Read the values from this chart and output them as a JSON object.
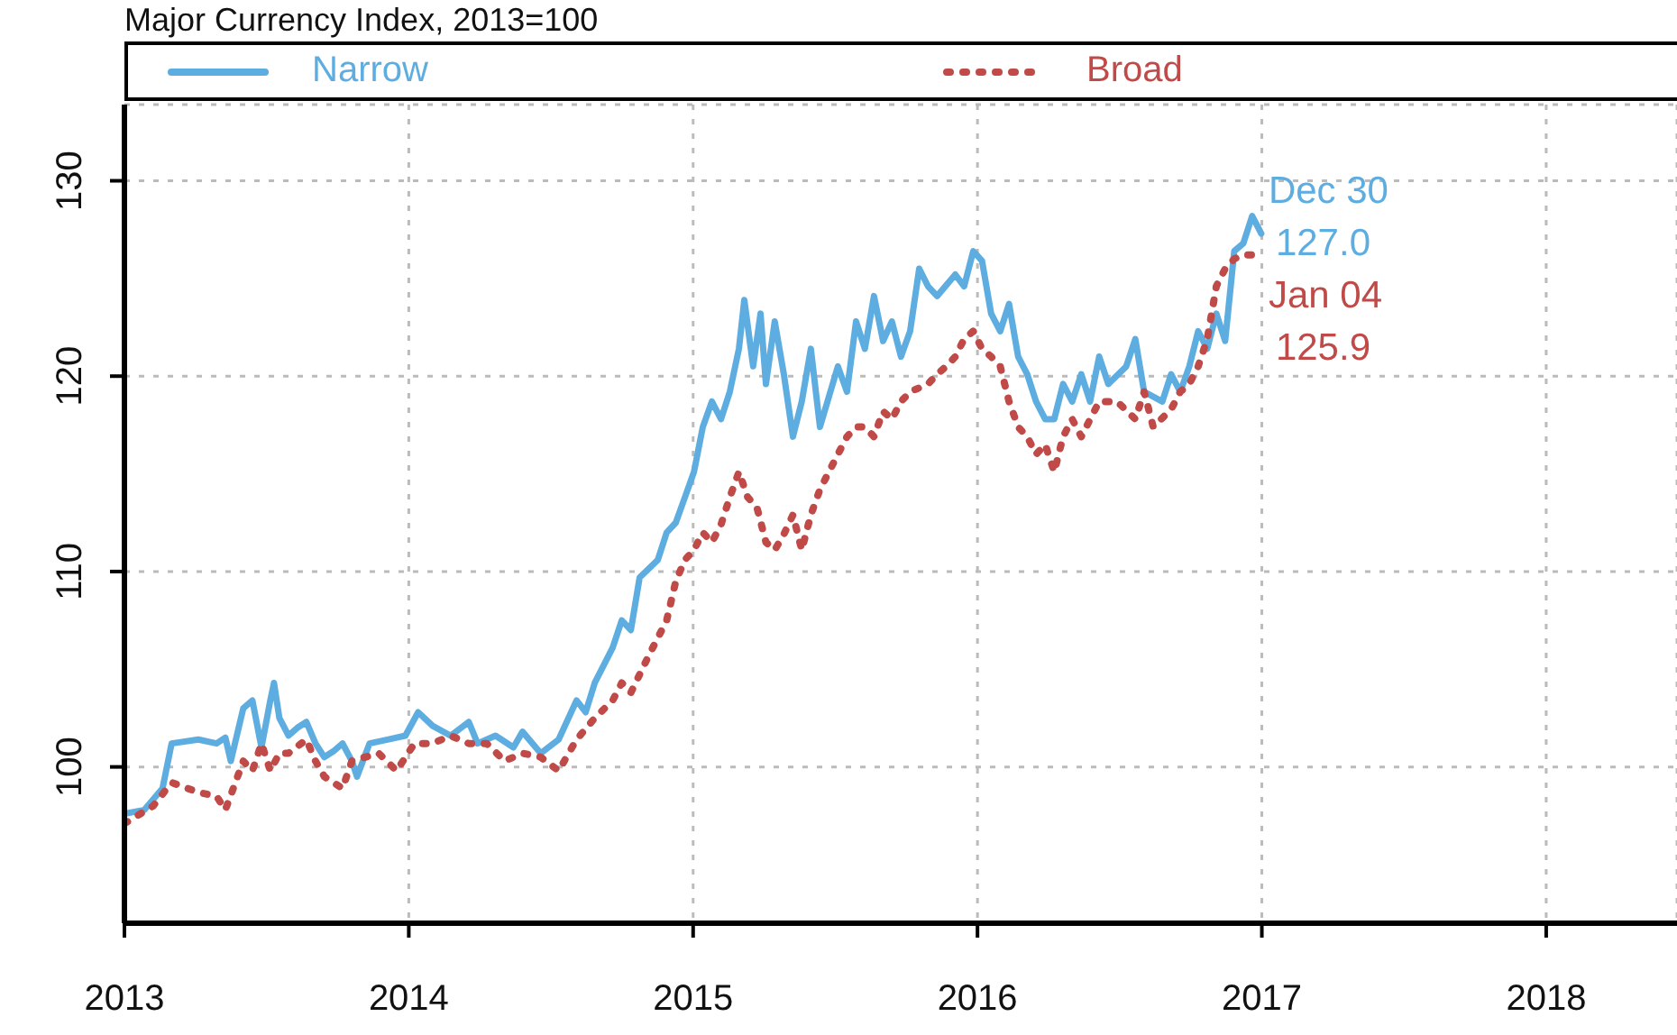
{
  "chart_data": {
    "type": "line",
    "title": "Major Currency Index, 2013=100",
    "series": [
      {
        "name": "Narrow",
        "color": "#5eade0",
        "line_style": "solid",
        "x": [
          2013.0,
          2013.07,
          2013.134,
          2013.166,
          2013.26,
          2013.324,
          2013.355,
          2013.374,
          2013.418,
          2013.45,
          2013.482,
          2013.513,
          2013.526,
          2013.545,
          2013.577,
          2013.608,
          2013.64,
          2013.672,
          2013.703,
          2013.735,
          2013.767,
          2013.8,
          2013.818,
          2013.862,
          2013.925,
          2013.988,
          2014.033,
          2014.084,
          2014.147,
          2014.211,
          2014.242,
          2014.305,
          2014.368,
          2014.4,
          2014.464,
          2014.527,
          2014.59,
          2014.622,
          2014.654,
          2014.717,
          2014.749,
          2014.781,
          2014.812,
          2014.876,
          2014.907,
          2014.939,
          2014.971,
          2015.003,
          2015.034,
          2015.066,
          2015.098,
          2015.129,
          2015.161,
          2015.18,
          2015.211,
          2015.237,
          2015.256,
          2015.287,
          2015.319,
          2015.351,
          2015.382,
          2015.414,
          2015.446,
          2015.509,
          2015.541,
          2015.573,
          2015.604,
          2015.636,
          2015.668,
          2015.699,
          2015.731,
          2015.763,
          2015.795,
          2015.826,
          2015.858,
          2015.922,
          2015.953,
          2015.985,
          2016.016,
          2016.048,
          2016.08,
          2016.111,
          2016.143,
          2016.175,
          2016.206,
          2016.238,
          2016.27,
          2016.301,
          2016.333,
          2016.365,
          2016.396,
          2016.428,
          2016.46,
          2016.523,
          2016.555,
          2016.586,
          2016.65,
          2016.681,
          2016.713,
          2016.745,
          2016.776,
          2016.808,
          2016.84,
          2016.871,
          2016.903,
          2016.935,
          2016.966,
          2016.998
        ],
        "values": [
          97.6,
          97.8,
          98.9,
          101.2,
          101.4,
          101.2,
          101.5,
          100.3,
          103,
          103.4,
          101,
          103.4,
          104.3,
          102.5,
          101.6,
          102,
          102.3,
          101.2,
          100.5,
          100.8,
          101.2,
          100.3,
          99.5,
          101.2,
          101.4,
          101.6,
          102.8,
          102.1,
          101.6,
          102.3,
          101.2,
          101.6,
          101,
          101.8,
          100.7,
          101.4,
          103.4,
          102.8,
          104.3,
          106.1,
          107.5,
          107,
          109.7,
          110.6,
          112,
          112.5,
          113.8,
          115.1,
          117.4,
          118.7,
          117.8,
          119.2,
          121.4,
          123.9,
          120.5,
          123.2,
          119.6,
          122.8,
          120.1,
          116.9,
          118.7,
          121.4,
          117.4,
          120.5,
          119.2,
          122.8,
          121.4,
          124.1,
          121.8,
          122.8,
          121,
          122.3,
          125.5,
          124.6,
          124.1,
          125.2,
          124.6,
          126.4,
          125.9,
          123.2,
          122.3,
          123.7,
          121,
          120.1,
          118.7,
          117.8,
          117.8,
          119.6,
          118.7,
          120.1,
          118.7,
          121,
          119.6,
          120.5,
          121.9,
          119.2,
          118.7,
          120.1,
          119.2,
          120.5,
          122.3,
          121.4,
          123.2,
          121.8,
          126.4,
          126.8,
          128.2,
          127.3
        ]
      },
      {
        "name": "Broad",
        "color": "#bf4a47",
        "line_style": "dotted",
        "x": [
          2013.0,
          2013.101,
          2013.166,
          2013.26,
          2013.324,
          2013.355,
          2013.418,
          2013.45,
          2013.482,
          2013.513,
          2013.545,
          2013.577,
          2013.64,
          2013.672,
          2013.703,
          2013.767,
          2013.8,
          2013.894,
          2013.957,
          2014.02,
          2014.084,
          2014.147,
          2014.211,
          2014.274,
          2014.337,
          2014.4,
          2014.464,
          2014.527,
          2014.59,
          2014.654,
          2014.717,
          2014.749,
          2014.781,
          2014.844,
          2014.907,
          2014.939,
          2014.971,
          2015.003,
          2015.034,
          2015.066,
          2015.098,
          2015.129,
          2015.161,
          2015.192,
          2015.224,
          2015.256,
          2015.287,
          2015.319,
          2015.351,
          2015.382,
          2015.414,
          2015.446,
          2015.509,
          2015.541,
          2015.573,
          2015.604,
          2015.636,
          2015.668,
          2015.699,
          2015.731,
          2015.763,
          2015.826,
          2015.858,
          2015.89,
          2015.922,
          2015.953,
          2015.985,
          2016.016,
          2016.048,
          2016.08,
          2016.111,
          2016.143,
          2016.175,
          2016.206,
          2016.238,
          2016.27,
          2016.301,
          2016.333,
          2016.365,
          2016.428,
          2016.491,
          2016.555,
          2016.586,
          2016.618,
          2016.681,
          2016.713,
          2016.745,
          2016.776,
          2016.808,
          2016.84,
          2016.871,
          2016.903,
          2016.935,
          2016.966,
          2016.998
        ],
        "values": [
          97.1,
          98,
          99.2,
          98.7,
          98.5,
          97.8,
          100.3,
          99.8,
          101.2,
          99.8,
          100.7,
          100.7,
          101.4,
          100.3,
          99.5,
          98.9,
          100.3,
          100.7,
          99.8,
          101.2,
          101.2,
          101.6,
          101.2,
          101.2,
          100.3,
          100.7,
          100.5,
          99.8,
          101.4,
          102.5,
          103.4,
          104.3,
          103.8,
          105.7,
          107.5,
          109.5,
          110.6,
          111.1,
          112,
          111.5,
          112.4,
          113.8,
          115.1,
          113.8,
          113.3,
          111.5,
          111.1,
          111.9,
          112.9,
          111.1,
          112.9,
          114.2,
          116,
          116.9,
          117.4,
          117.4,
          116.9,
          118.2,
          117.8,
          118.7,
          119.2,
          119.6,
          120.1,
          120.5,
          121,
          121.9,
          122.3,
          121.4,
          121,
          120.5,
          118.7,
          117.4,
          116.9,
          116,
          116.5,
          115.1,
          116.9,
          117.8,
          116.9,
          118.7,
          118.7,
          117.8,
          119.2,
          117.4,
          118.3,
          119.2,
          119.6,
          120.5,
          121.9,
          124.6,
          125.5,
          126,
          126.2,
          126.2,
          125.9
        ]
      }
    ],
    "annotations": [
      "Dec 30",
      "127.0",
      "Jan 04",
      "125.9"
    ],
    "xlim": [
      2013.0,
      2018.46
    ],
    "xticks": [
      2013,
      2014,
      2015,
      2016,
      2017,
      2018
    ],
    "ylim": [
      92,
      133.9
    ],
    "yticks": [
      100,
      110,
      120,
      130
    ],
    "grid": true,
    "legend": "top"
  }
}
